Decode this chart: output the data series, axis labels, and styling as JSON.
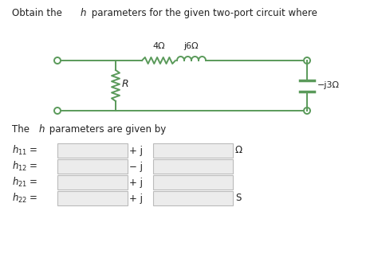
{
  "bg_color": "#ffffff",
  "text_color": "#222222",
  "line_color": "#5a9a5a",
  "circuit": {
    "res_4_label": "4Ω",
    "ind_j6_label": "j6Ω",
    "res_R_label": "R",
    "cap_j3_label": "−j3Ω"
  },
  "rows": [
    {
      "label_sub": "11",
      "sign": "+ j",
      "unit": "Ω"
    },
    {
      "label_sub": "12",
      "sign": "− j",
      "unit": ""
    },
    {
      "label_sub": "21",
      "sign": "+ j",
      "unit": ""
    },
    {
      "label_sub": "22",
      "sign": "+ j",
      "unit": "S"
    }
  ],
  "box_edge": "#bbbbbb",
  "box_fill": "#ececec",
  "font_size_title": 8.5,
  "font_size_circuit": 8.0,
  "font_size_param": 8.5
}
